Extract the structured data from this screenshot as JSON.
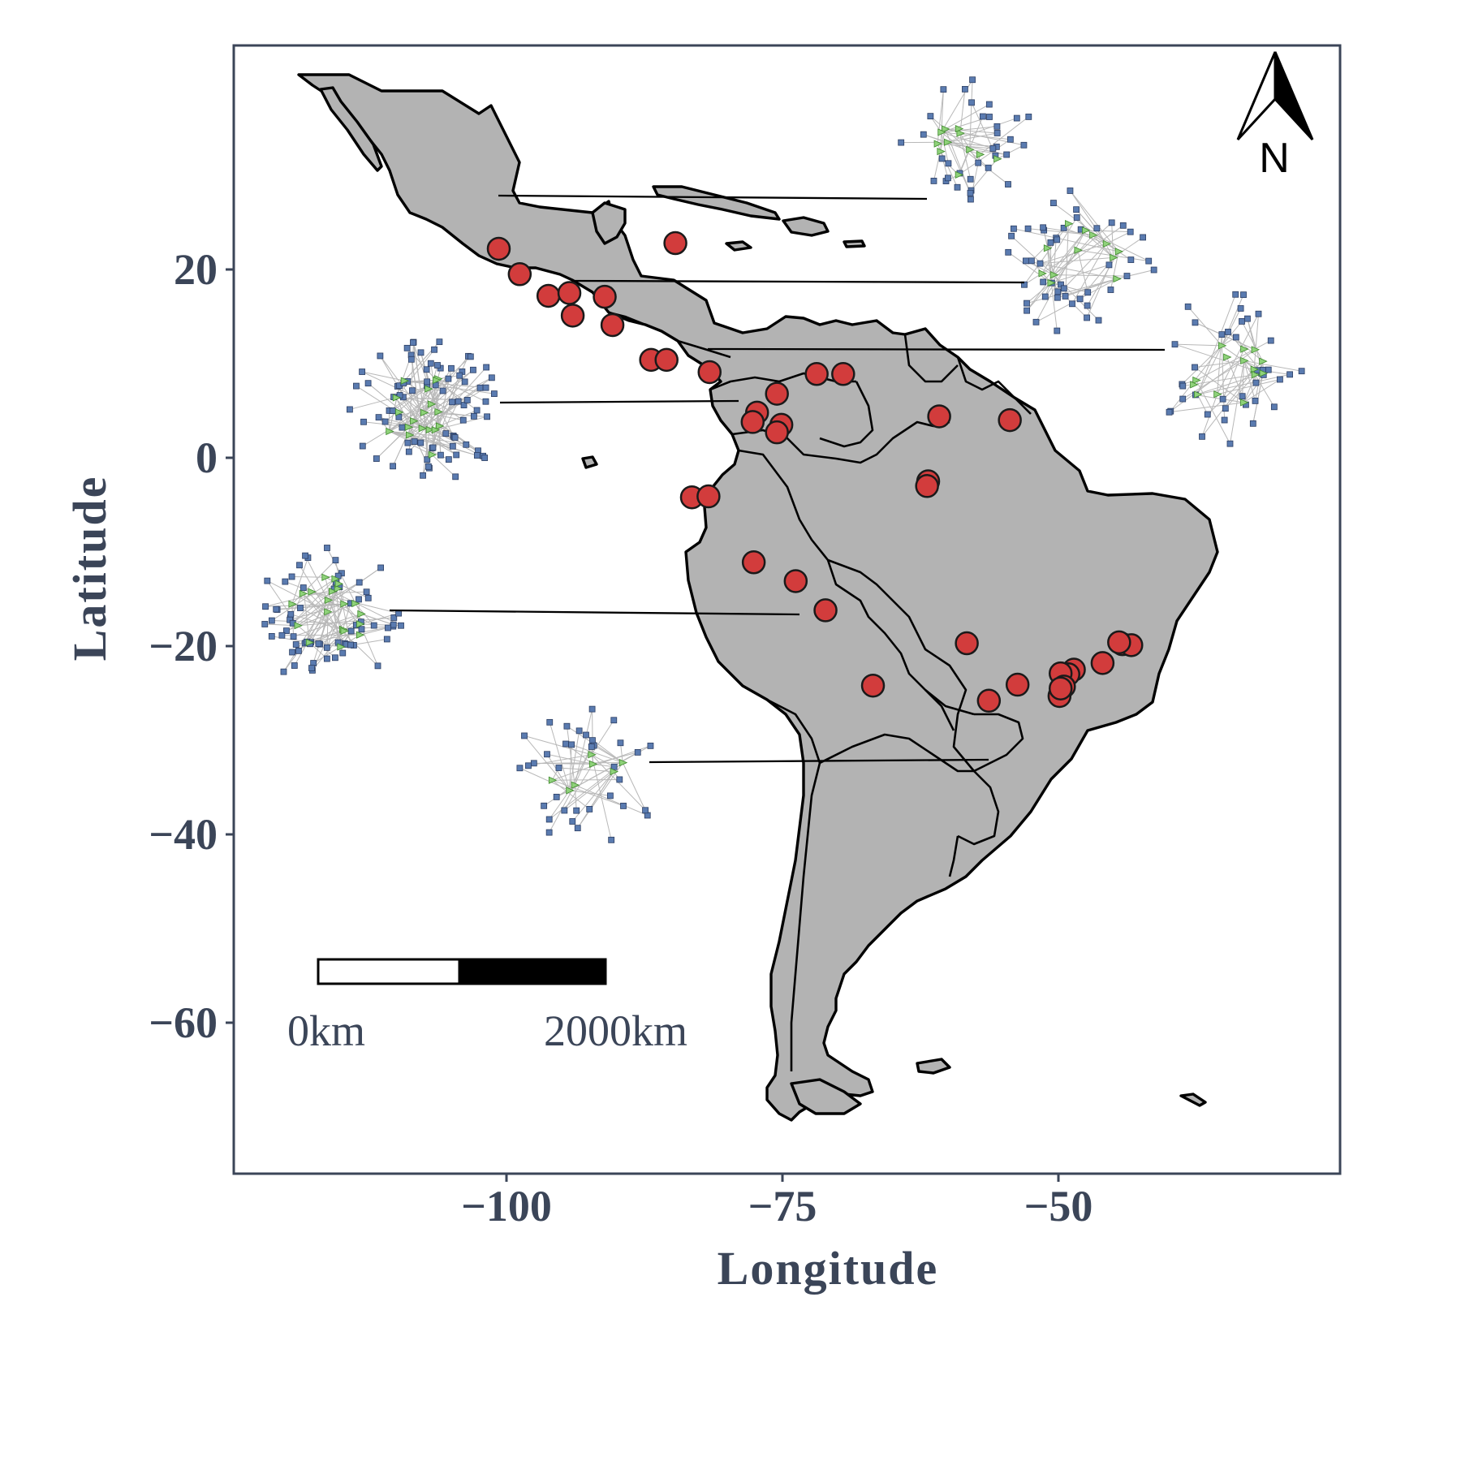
{
  "map": {
    "xlabel": "Longitude",
    "ylabel": "Latitude",
    "x_ticks": [
      {
        "value": -100,
        "label": "−100"
      },
      {
        "value": -75,
        "label": "−75"
      },
      {
        "value": -50,
        "label": "−50"
      }
    ],
    "y_ticks": [
      {
        "value": 20,
        "label": "20"
      },
      {
        "value": 0,
        "label": "0"
      },
      {
        "value": -20,
        "label": "−20"
      },
      {
        "value": -40,
        "label": "−40"
      },
      {
        "value": -60,
        "label": "−60"
      }
    ],
    "north_label": "N",
    "scale_bar": {
      "start_label": "0km",
      "end_label": "2000km"
    },
    "colors": {
      "land": "#b3b3b3",
      "site": "#d23c3c",
      "axis": "#3b4558",
      "network_node_a": "#5a7bb0",
      "network_node_b": "#8fd27a"
    }
  },
  "chart_data": {
    "type": "scatter",
    "title": "",
    "xlabel": "Longitude",
    "ylabel": "Latitude",
    "xlim": [
      -125,
      -24
    ],
    "ylim": [
      -60,
      35
    ],
    "series": [
      {
        "values": [
          {
            "x": -100.7,
            "y": 22.2
          },
          {
            "x": -98.8,
            "y": 19.5
          },
          {
            "x": -96.2,
            "y": 17.2
          },
          {
            "x": -94.3,
            "y": 17.5
          },
          {
            "x": -91.1,
            "y": 17.1
          },
          {
            "x": -94.0,
            "y": 15.1
          },
          {
            "x": -90.4,
            "y": 14.1
          },
          {
            "x": -84.7,
            "y": 22.8
          },
          {
            "x": -86.9,
            "y": 10.4
          },
          {
            "x": -85.5,
            "y": 10.4
          },
          {
            "x": -81.6,
            "y": 9.1
          },
          {
            "x": -71.9,
            "y": 8.9
          },
          {
            "x": -69.5,
            "y": 8.9
          },
          {
            "x": -75.5,
            "y": 6.8
          },
          {
            "x": -77.3,
            "y": 4.8
          },
          {
            "x": -77.7,
            "y": 3.8
          },
          {
            "x": -75.1,
            "y": 3.5
          },
          {
            "x": -75.5,
            "y": 2.7
          },
          {
            "x": -60.8,
            "y": 4.4
          },
          {
            "x": -54.4,
            "y": 4.0
          },
          {
            "x": -61.8,
            "y": -2.5
          },
          {
            "x": -61.9,
            "y": -3.0
          },
          {
            "x": -83.2,
            "y": -4.2
          },
          {
            "x": -81.7,
            "y": -4.1
          },
          {
            "x": -77.6,
            "y": -11.1
          },
          {
            "x": -73.8,
            "y": -13.1
          },
          {
            "x": -71.1,
            "y": -16.2
          },
          {
            "x": -58.3,
            "y": -19.7
          },
          {
            "x": -44.2,
            "y": -19.8
          },
          {
            "x": -43.4,
            "y": -19.9
          },
          {
            "x": -44.5,
            "y": -19.6
          },
          {
            "x": -46.0,
            "y": -21.8
          },
          {
            "x": -48.6,
            "y": -22.5
          },
          {
            "x": -49.1,
            "y": -23.0
          },
          {
            "x": -49.8,
            "y": -22.9
          },
          {
            "x": -49.5,
            "y": -24.3
          },
          {
            "x": -49.9,
            "y": -25.3
          },
          {
            "x": -49.8,
            "y": -24.5
          },
          {
            "x": -53.7,
            "y": -24.1
          },
          {
            "x": -56.3,
            "y": -25.8
          },
          {
            "x": -66.8,
            "y": -24.2
          }
        ]
      }
    ]
  }
}
